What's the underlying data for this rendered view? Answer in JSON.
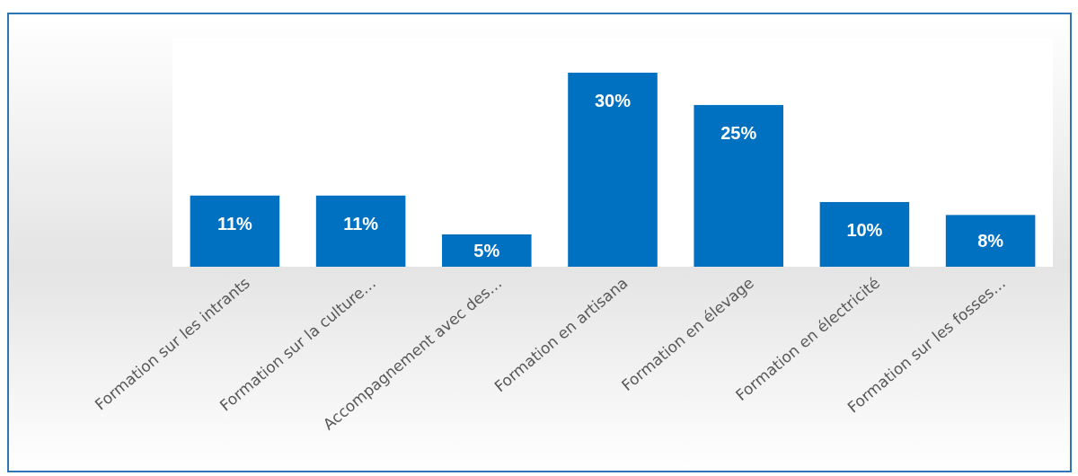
{
  "chart_data": {
    "type": "bar",
    "categories": [
      "Formation sur les intrants",
      "Formation sur la culture…",
      "Accompagnement avec des…",
      "Formation en artisana",
      "Formation en élevage",
      "Formation en électricité",
      "Formation sur les fosses…"
    ],
    "values": [
      11,
      11,
      5,
      30,
      25,
      10,
      8
    ],
    "color": "#0070c0",
    "value_labels": [
      "11%",
      "11%",
      "5%",
      "30%",
      "25%",
      "10%",
      "8%"
    ]
  }
}
